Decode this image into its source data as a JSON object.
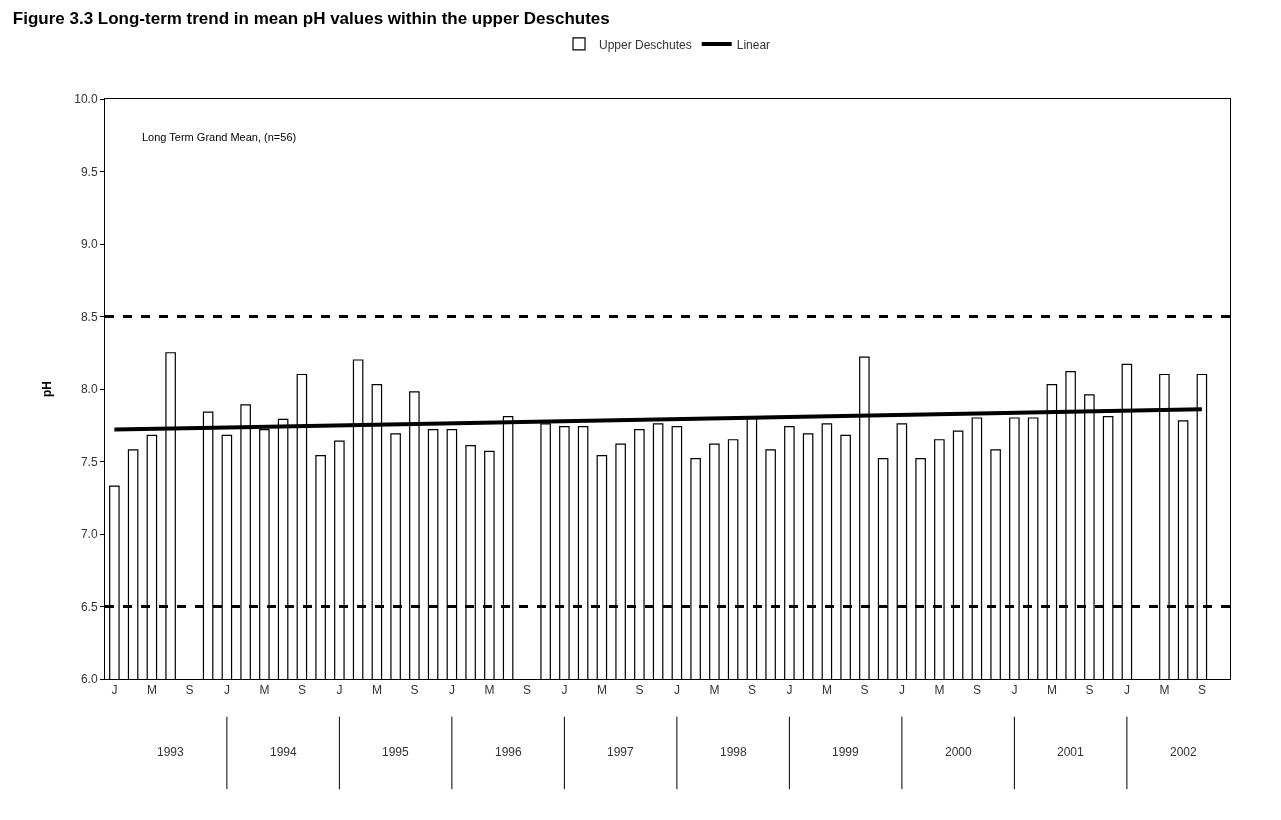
{
  "chart_data": {
    "type": "bar",
    "title": "Figure 3.3 Long-term trend in mean pH values within the upper Deschutes",
    "ylabel": "pH",
    "categories": [
      "J",
      null,
      "M",
      null,
      "S",
      null,
      "J",
      null,
      "M",
      null,
      "S",
      null,
      "J",
      null,
      "M",
      null,
      "S",
      null,
      "J",
      null,
      "M",
      null,
      "S",
      null,
      "J",
      null,
      "M",
      null,
      "S",
      null,
      "J",
      null,
      "M",
      null,
      "S",
      null,
      "J",
      null,
      "M",
      null,
      "S",
      null,
      "J",
      null,
      "M",
      null,
      "S",
      null,
      "J",
      null,
      "M",
      null,
      "S",
      null,
      "J",
      null,
      "M",
      null,
      "S",
      null
    ],
    "series": [
      {
        "name": "Upper Deschutes",
        "color": "#ffffff",
        "values": [
          7.33,
          7.58,
          7.68,
          8.25,
          null,
          7.84,
          7.68,
          7.89,
          7.72,
          7.79,
          8.1,
          7.54,
          7.64,
          8.2,
          8.03,
          7.69,
          7.98,
          7.72,
          7.72,
          7.61,
          7.57,
          7.81,
          null,
          7.76,
          7.74,
          7.74,
          7.54,
          7.62,
          7.72,
          7.76,
          7.74,
          7.52,
          7.62,
          7.65,
          7.8,
          7.58,
          7.74,
          7.69,
          7.76,
          7.68,
          8.22,
          7.52,
          7.76,
          7.52,
          7.65,
          7.71,
          7.8,
          7.58,
          7.8,
          7.8,
          8.03,
          8.12,
          7.96,
          7.81,
          8.17,
          null,
          8.1,
          7.78,
          8.1,
          null
        ]
      },
      {
        "name": "Linear",
        "type": "line",
        "color": "#000000",
        "line_style": "solid",
        "values": [
          7.72,
          null,
          null,
          null,
          null,
          null,
          null,
          null,
          null,
          null,
          null,
          null,
          null,
          null,
          null,
          null,
          null,
          null,
          null,
          null,
          null,
          null,
          null,
          null,
          null,
          null,
          null,
          null,
          null,
          null,
          null,
          null,
          null,
          null,
          null,
          null,
          null,
          null,
          null,
          null,
          null,
          null,
          null,
          null,
          null,
          null,
          null,
          null,
          null,
          null,
          null,
          null,
          null,
          null,
          null,
          null,
          null,
          null,
          7.86,
          null
        ]
      }
    ],
    "ylim": [
      6,
      10
    ],
    "yticks": [
      {
        "value": 6,
        "label": "6.0"
      },
      {
        "value": 6.5,
        "label": "6.5"
      },
      {
        "value": 7,
        "label": "7.0"
      },
      {
        "value": 7.5,
        "label": "7.5"
      },
      {
        "value": 8,
        "label": "8.0"
      },
      {
        "value": 8.5,
        "label": "8.5"
      },
      {
        "value": 9,
        "label": "9.0"
      },
      {
        "value": 9.5,
        "label": "9.5"
      },
      {
        "value": 10,
        "label": "10.0"
      }
    ],
    "ref_lines": [
      {
        "axis": "y",
        "value": 8.5,
        "color": "#000000",
        "line_style": "dashed"
      },
      {
        "axis": "y",
        "value": 6.5,
        "color": "#000000",
        "line_style": "dashed"
      }
    ],
    "annotations": [
      "Long Term Grand Mean, (n=56)",
      "1993",
      "1994",
      "1995",
      "1996",
      "1997",
      "1998",
      "1999",
      "2000",
      "2001",
      "2002"
    ],
    "legend": "top",
    "grid": false
  }
}
